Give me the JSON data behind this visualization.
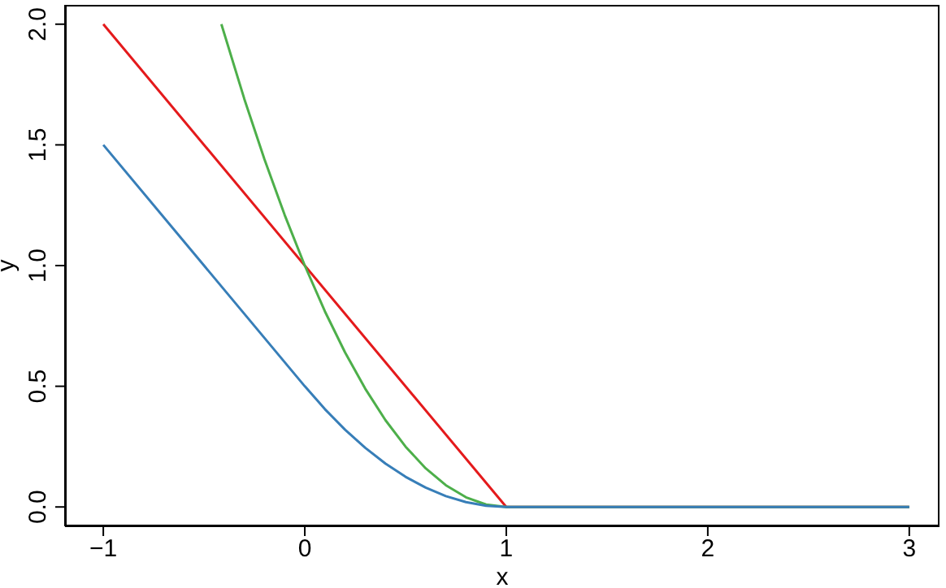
{
  "chart_data": {
    "type": "line",
    "xlabel": "x",
    "ylabel": "y",
    "xlim": [
      -1.19,
      3.15
    ],
    "ylim": [
      -0.08,
      2.08
    ],
    "xticks": [
      {
        "value": -1,
        "label": "−1"
      },
      0,
      1,
      2,
      3
    ],
    "yticks": [
      {
        "value": 0,
        "label": "0.0"
      },
      {
        "value": 0.5,
        "label": "0.5"
      },
      {
        "value": 1,
        "label": "1.0"
      },
      {
        "value": 1.5,
        "label": "1.5"
      },
      {
        "value": 2,
        "label": "2.0"
      }
    ],
    "marker": "none",
    "line_style": "solid",
    "series": [
      {
        "color": "#e41a1c",
        "x": [
          -1,
          1,
          3
        ],
        "values": [
          2,
          0,
          0
        ]
      },
      {
        "color": "#4daf4a",
        "x": [
          -0.414,
          -0.3,
          -0.2,
          -0.1,
          0,
          0.1,
          0.2,
          0.3,
          0.4,
          0.5,
          0.6,
          0.7,
          0.8,
          0.9,
          1,
          3
        ],
        "values": [
          2,
          1.69,
          1.44,
          1.21,
          1,
          0.81,
          0.64,
          0.49,
          0.36,
          0.25,
          0.16,
          0.09,
          0.04,
          0.01,
          0,
          0
        ]
      },
      {
        "color": "#377eb8",
        "x": [
          -1,
          0,
          0.1,
          0.2,
          0.3,
          0.4,
          0.5,
          0.6,
          0.7,
          0.8,
          0.9,
          1,
          3
        ],
        "values": [
          1.5,
          0.5,
          0.405,
          0.32,
          0.245,
          0.18,
          0.125,
          0.08,
          0.045,
          0.02,
          0.005,
          0,
          0
        ]
      }
    ]
  }
}
